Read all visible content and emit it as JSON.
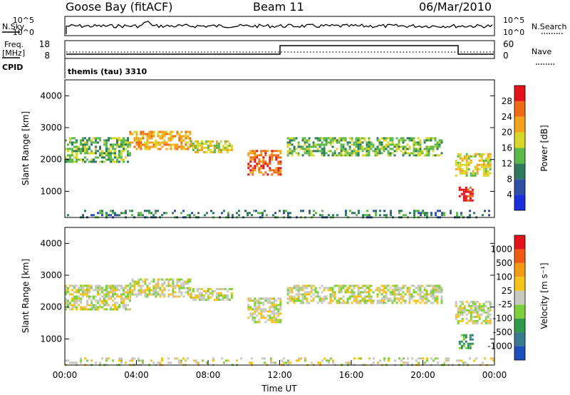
{
  "header": {
    "station": "Goose Bay (fitACF)",
    "beam": "Beam 11",
    "date": "06/Mar/2010"
  },
  "noise_panel": {
    "left_label": "N.Sky",
    "right_label": "N.Search",
    "left_ticks": [
      "10^5",
      "10^0"
    ],
    "right_ticks": [
      "10^5",
      "10^0"
    ]
  },
  "freq_panel": {
    "left_label_line1": "Freq.",
    "left_label_line2": "[MHz]",
    "right_label": "Nave",
    "left_ticks": [
      "18",
      "8"
    ],
    "right_ticks": [
      "60",
      "0"
    ],
    "cpid_label": "CPID",
    "cpid_text": "themis (tau) 3310"
  },
  "chart_data": [
    {
      "type": "heatmap",
      "name": "power",
      "ylabel": "Slant Range [km]",
      "ylim": [
        180,
        4500
      ],
      "yticks": [
        "1000",
        "2000",
        "3000",
        "4000"
      ],
      "xlim": [
        0,
        24
      ],
      "colorbar": {
        "label": "Power [dB]",
        "ticks": [
          "28",
          "24",
          "20",
          "16",
          "12",
          "8",
          "4"
        ],
        "colors": [
          "#1a2fd9",
          "#2f4fa6",
          "#2f7a5a",
          "#5cb84a",
          "#d9d62a",
          "#f2a21c",
          "#ee6a14",
          "#e0141a"
        ]
      },
      "regions": [
        {
          "t": [
            0.0,
            3.6
          ],
          "r": [
            1950,
            2700
          ],
          "level": 3
        },
        {
          "t": [
            3.6,
            7.0
          ],
          "r": [
            2300,
            2900
          ],
          "level": 5
        },
        {
          "t": [
            7.0,
            9.3
          ],
          "r": [
            2250,
            2600
          ],
          "level": 4
        },
        {
          "t": [
            10.2,
            12.0
          ],
          "r": [
            1550,
            2300
          ],
          "level": 6
        },
        {
          "t": [
            12.4,
            21.0
          ],
          "r": [
            2150,
            2700
          ],
          "level": 3
        },
        {
          "t": [
            21.8,
            23.8
          ],
          "r": [
            1500,
            2200
          ],
          "level": 4
        },
        {
          "t": [
            22.0,
            22.8
          ],
          "r": [
            700,
            1150
          ],
          "level": 7
        },
        {
          "t": [
            0.0,
            24.0
          ],
          "r": [
            180,
            420
          ],
          "level": 2
        }
      ]
    },
    {
      "type": "heatmap",
      "name": "velocity",
      "ylabel": "Slant Range [km]",
      "ylim": [
        180,
        4500
      ],
      "yticks": [
        "1000",
        "2000",
        "3000",
        "4000"
      ],
      "xlim": [
        0,
        24
      ],
      "xticks": [
        "00:00",
        "04:00",
        "08:00",
        "12:00",
        "16:00",
        "20:00",
        "00:00"
      ],
      "xlabel": "Time UT",
      "colorbar": {
        "label": "Velocity [m s⁻¹]",
        "ticks": [
          "1000",
          "500",
          "100",
          "25",
          "-25",
          "-100",
          "-500",
          "-1000"
        ],
        "colors": [
          "#1f4fbf",
          "#3a7a8f",
          "#2f9a4a",
          "#7fcf3a",
          "#c8c8c0",
          "#f5c21a",
          "#f29a14",
          "#ee5a14",
          "#e0141a"
        ]
      },
      "regions": [
        {
          "t": [
            0.0,
            3.6
          ],
          "r": [
            1950,
            2700
          ],
          "level": 4
        },
        {
          "t": [
            3.6,
            7.0
          ],
          "r": [
            2300,
            2900
          ],
          "level": 4
        },
        {
          "t": [
            7.0,
            9.3
          ],
          "r": [
            2250,
            2600
          ],
          "level": 4
        },
        {
          "t": [
            10.2,
            12.0
          ],
          "r": [
            1550,
            2300
          ],
          "level": 4
        },
        {
          "t": [
            12.4,
            21.0
          ],
          "r": [
            2150,
            2700
          ],
          "level": 4
        },
        {
          "t": [
            21.8,
            23.8
          ],
          "r": [
            1500,
            2200
          ],
          "level": 4
        },
        {
          "t": [
            22.0,
            22.8
          ],
          "r": [
            700,
            1150
          ],
          "level": 2
        },
        {
          "t": [
            0.0,
            24.0
          ],
          "r": [
            180,
            420
          ],
          "level": 4
        }
      ]
    }
  ]
}
